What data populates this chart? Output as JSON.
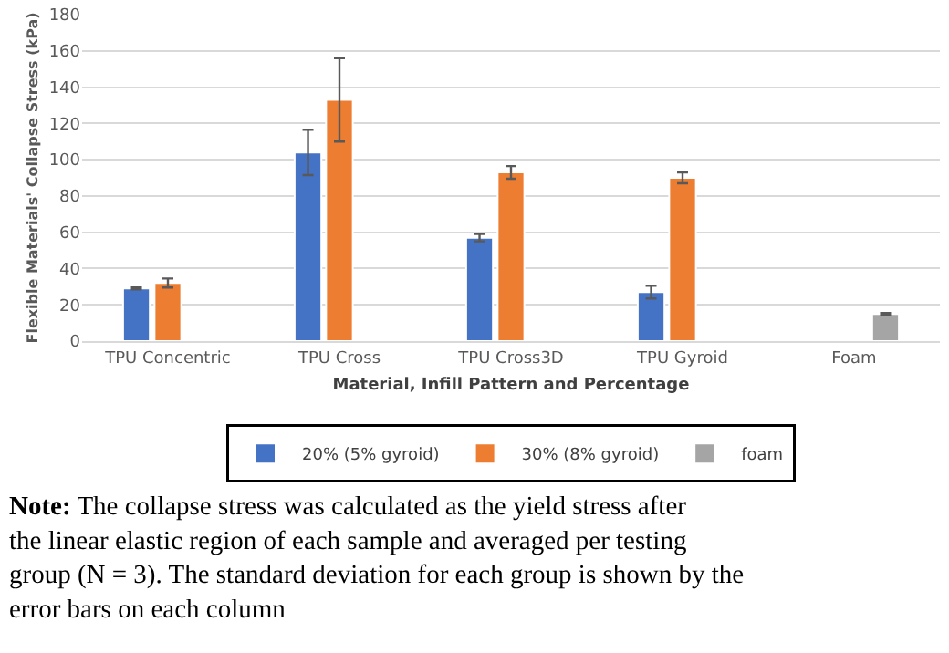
{
  "chart_data": {
    "type": "bar",
    "categories": [
      "TPU Concentric",
      "TPU Cross",
      "TPU Cross3D",
      "TPU Gyroid",
      "Foam"
    ],
    "series": [
      {
        "name": "20% (5% gyroid)",
        "color": "#4472c4",
        "values": [
          29,
          104,
          57,
          27,
          null
        ],
        "errors": [
          0.5,
          12.5,
          2,
          3.5,
          null
        ]
      },
      {
        "name": "30% (8% gyroid)",
        "color": "#ed7d31",
        "values": [
          32,
          133,
          93,
          90,
          null
        ],
        "errors": [
          2.5,
          23,
          3.5,
          3,
          null
        ]
      },
      {
        "name": "foam",
        "color": "#a5a5a5",
        "values": [
          null,
          null,
          null,
          null,
          15
        ],
        "errors": [
          null,
          null,
          null,
          null,
          0.5
        ]
      }
    ],
    "xlabel": "Material, Infill Pattern and Percentage",
    "ylabel": "Flexible Materials' Collapse Stress (kPa)",
    "ylim": [
      0,
      180
    ],
    "yticks": [
      0,
      20,
      40,
      60,
      80,
      100,
      120,
      140,
      160,
      180
    ],
    "grid": "y",
    "legend": "bottom",
    "annotations": [
      "Note: The collapse stress was calculated as the yield stress after the linear elastic region of each sample and averaged per testing group (N = 3). The standard deviation for each group is shown by the error bars on each column"
    ]
  }
}
